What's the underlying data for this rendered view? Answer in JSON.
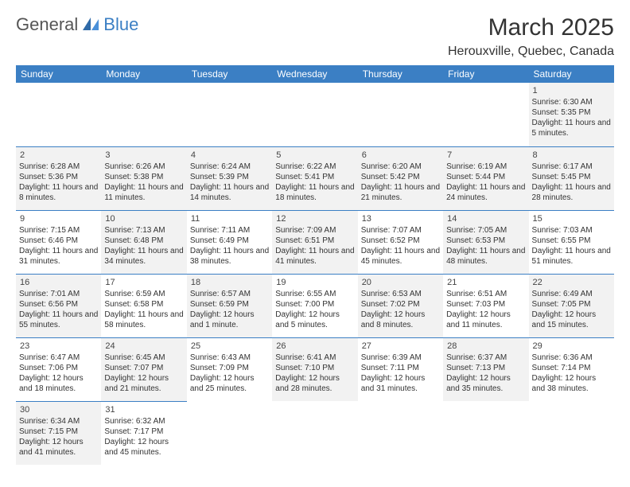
{
  "logo": {
    "text1": "General",
    "text2": "Blue"
  },
  "title": "March 2025",
  "location": "Herouxville, Quebec, Canada",
  "colors": {
    "header_bg": "#3b7fc4",
    "header_fg": "#ffffff",
    "dim_bg": "#f2f2f2",
    "rule": "#3b7fc4",
    "text": "#333333"
  },
  "weekdays": [
    "Sunday",
    "Monday",
    "Tuesday",
    "Wednesday",
    "Thursday",
    "Friday",
    "Saturday"
  ],
  "weeks": [
    [
      null,
      null,
      null,
      null,
      null,
      null,
      {
        "n": 1,
        "dim": true,
        "sr": "Sunrise: 6:30 AM",
        "ss": "Sunset: 5:35 PM",
        "dl": "Daylight: 11 hours and 5 minutes."
      }
    ],
    [
      {
        "n": 2,
        "dim": true,
        "sr": "Sunrise: 6:28 AM",
        "ss": "Sunset: 5:36 PM",
        "dl": "Daylight: 11 hours and 8 minutes."
      },
      {
        "n": 3,
        "dim": true,
        "sr": "Sunrise: 6:26 AM",
        "ss": "Sunset: 5:38 PM",
        "dl": "Daylight: 11 hours and 11 minutes."
      },
      {
        "n": 4,
        "dim": true,
        "sr": "Sunrise: 6:24 AM",
        "ss": "Sunset: 5:39 PM",
        "dl": "Daylight: 11 hours and 14 minutes."
      },
      {
        "n": 5,
        "dim": true,
        "sr": "Sunrise: 6:22 AM",
        "ss": "Sunset: 5:41 PM",
        "dl": "Daylight: 11 hours and 18 minutes."
      },
      {
        "n": 6,
        "dim": true,
        "sr": "Sunrise: 6:20 AM",
        "ss": "Sunset: 5:42 PM",
        "dl": "Daylight: 11 hours and 21 minutes."
      },
      {
        "n": 7,
        "dim": true,
        "sr": "Sunrise: 6:19 AM",
        "ss": "Sunset: 5:44 PM",
        "dl": "Daylight: 11 hours and 24 minutes."
      },
      {
        "n": 8,
        "dim": true,
        "sr": "Sunrise: 6:17 AM",
        "ss": "Sunset: 5:45 PM",
        "dl": "Daylight: 11 hours and 28 minutes."
      }
    ],
    [
      {
        "n": 9,
        "dim": false,
        "sr": "Sunrise: 7:15 AM",
        "ss": "Sunset: 6:46 PM",
        "dl": "Daylight: 11 hours and 31 minutes."
      },
      {
        "n": 10,
        "dim": true,
        "sr": "Sunrise: 7:13 AM",
        "ss": "Sunset: 6:48 PM",
        "dl": "Daylight: 11 hours and 34 minutes."
      },
      {
        "n": 11,
        "dim": false,
        "sr": "Sunrise: 7:11 AM",
        "ss": "Sunset: 6:49 PM",
        "dl": "Daylight: 11 hours and 38 minutes."
      },
      {
        "n": 12,
        "dim": true,
        "sr": "Sunrise: 7:09 AM",
        "ss": "Sunset: 6:51 PM",
        "dl": "Daylight: 11 hours and 41 minutes."
      },
      {
        "n": 13,
        "dim": false,
        "sr": "Sunrise: 7:07 AM",
        "ss": "Sunset: 6:52 PM",
        "dl": "Daylight: 11 hours and 45 minutes."
      },
      {
        "n": 14,
        "dim": true,
        "sr": "Sunrise: 7:05 AM",
        "ss": "Sunset: 6:53 PM",
        "dl": "Daylight: 11 hours and 48 minutes."
      },
      {
        "n": 15,
        "dim": false,
        "sr": "Sunrise: 7:03 AM",
        "ss": "Sunset: 6:55 PM",
        "dl": "Daylight: 11 hours and 51 minutes."
      }
    ],
    [
      {
        "n": 16,
        "dim": true,
        "sr": "Sunrise: 7:01 AM",
        "ss": "Sunset: 6:56 PM",
        "dl": "Daylight: 11 hours and 55 minutes."
      },
      {
        "n": 17,
        "dim": false,
        "sr": "Sunrise: 6:59 AM",
        "ss": "Sunset: 6:58 PM",
        "dl": "Daylight: 11 hours and 58 minutes."
      },
      {
        "n": 18,
        "dim": true,
        "sr": "Sunrise: 6:57 AM",
        "ss": "Sunset: 6:59 PM",
        "dl": "Daylight: 12 hours and 1 minute."
      },
      {
        "n": 19,
        "dim": false,
        "sr": "Sunrise: 6:55 AM",
        "ss": "Sunset: 7:00 PM",
        "dl": "Daylight: 12 hours and 5 minutes."
      },
      {
        "n": 20,
        "dim": true,
        "sr": "Sunrise: 6:53 AM",
        "ss": "Sunset: 7:02 PM",
        "dl": "Daylight: 12 hours and 8 minutes."
      },
      {
        "n": 21,
        "dim": false,
        "sr": "Sunrise: 6:51 AM",
        "ss": "Sunset: 7:03 PM",
        "dl": "Daylight: 12 hours and 11 minutes."
      },
      {
        "n": 22,
        "dim": true,
        "sr": "Sunrise: 6:49 AM",
        "ss": "Sunset: 7:05 PM",
        "dl": "Daylight: 12 hours and 15 minutes."
      }
    ],
    [
      {
        "n": 23,
        "dim": false,
        "sr": "Sunrise: 6:47 AM",
        "ss": "Sunset: 7:06 PM",
        "dl": "Daylight: 12 hours and 18 minutes."
      },
      {
        "n": 24,
        "dim": true,
        "sr": "Sunrise: 6:45 AM",
        "ss": "Sunset: 7:07 PM",
        "dl": "Daylight: 12 hours and 21 minutes."
      },
      {
        "n": 25,
        "dim": false,
        "sr": "Sunrise: 6:43 AM",
        "ss": "Sunset: 7:09 PM",
        "dl": "Daylight: 12 hours and 25 minutes."
      },
      {
        "n": 26,
        "dim": true,
        "sr": "Sunrise: 6:41 AM",
        "ss": "Sunset: 7:10 PM",
        "dl": "Daylight: 12 hours and 28 minutes."
      },
      {
        "n": 27,
        "dim": false,
        "sr": "Sunrise: 6:39 AM",
        "ss": "Sunset: 7:11 PM",
        "dl": "Daylight: 12 hours and 31 minutes."
      },
      {
        "n": 28,
        "dim": true,
        "sr": "Sunrise: 6:37 AM",
        "ss": "Sunset: 7:13 PM",
        "dl": "Daylight: 12 hours and 35 minutes."
      },
      {
        "n": 29,
        "dim": false,
        "sr": "Sunrise: 6:36 AM",
        "ss": "Sunset: 7:14 PM",
        "dl": "Daylight: 12 hours and 38 minutes."
      }
    ],
    [
      {
        "n": 30,
        "dim": true,
        "sr": "Sunrise: 6:34 AM",
        "ss": "Sunset: 7:15 PM",
        "dl": "Daylight: 12 hours and 41 minutes."
      },
      {
        "n": 31,
        "dim": false,
        "sr": "Sunrise: 6:32 AM",
        "ss": "Sunset: 7:17 PM",
        "dl": "Daylight: 12 hours and 45 minutes."
      },
      null,
      null,
      null,
      null,
      null
    ]
  ]
}
